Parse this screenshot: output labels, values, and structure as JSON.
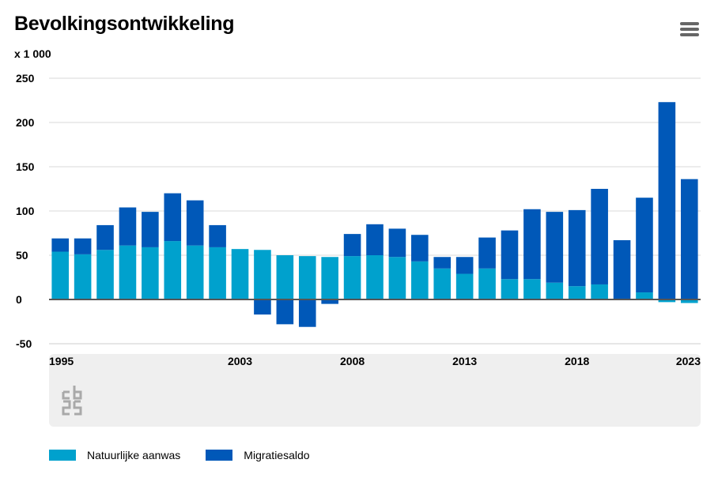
{
  "header": {
    "title": "Bevolkingsontwikkeling",
    "unit": "x 1 000",
    "menu_icon": "hamburger-menu-icon"
  },
  "logo": {
    "name": "cbs-logo-icon"
  },
  "colors": {
    "natural": "#00A1CD",
    "migration": "#0058B8",
    "zero_line": "#555555",
    "grid": "#d9d9d9",
    "slider_bg": "#efefef"
  },
  "chart_data": {
    "type": "bar",
    "stacked": true,
    "ylim": [
      -50,
      250
    ],
    "y_ticks": [
      -50,
      0,
      50,
      100,
      150,
      200,
      250
    ],
    "x_tick_labels": [
      "1995",
      "2003",
      "2008",
      "2013",
      "2018",
      "2023"
    ],
    "grid": true,
    "legend_position": "bottom",
    "categories": [
      "1995",
      "1996",
      "1997",
      "1998",
      "1999",
      "2000",
      "2001",
      "2002",
      "2003",
      "2004",
      "2005",
      "2006",
      "2007",
      "2008",
      "2009",
      "2010",
      "2011",
      "2012",
      "2013",
      "2014",
      "2015",
      "2016",
      "2017",
      "2018",
      "2019",
      "2020",
      "2021",
      "2022",
      "2023"
    ],
    "series": [
      {
        "name": "Natuurlijke aanwas",
        "values": [
          54,
          51,
          56,
          61,
          59,
          66,
          61,
          59,
          57,
          56,
          50,
          49,
          48,
          49,
          50,
          48,
          43,
          35,
          29,
          35,
          23,
          23,
          19,
          15,
          17,
          0,
          8,
          -3,
          -4
        ]
      },
      {
        "name": "Migratiesaldo",
        "values": [
          15,
          18,
          28,
          43,
          40,
          54,
          51,
          25,
          0,
          -17,
          -28,
          -31,
          -5,
          25,
          35,
          32,
          30,
          13,
          19,
          35,
          55,
          79,
          80,
          86,
          108,
          67,
          107,
          223,
          136
        ]
      }
    ]
  }
}
